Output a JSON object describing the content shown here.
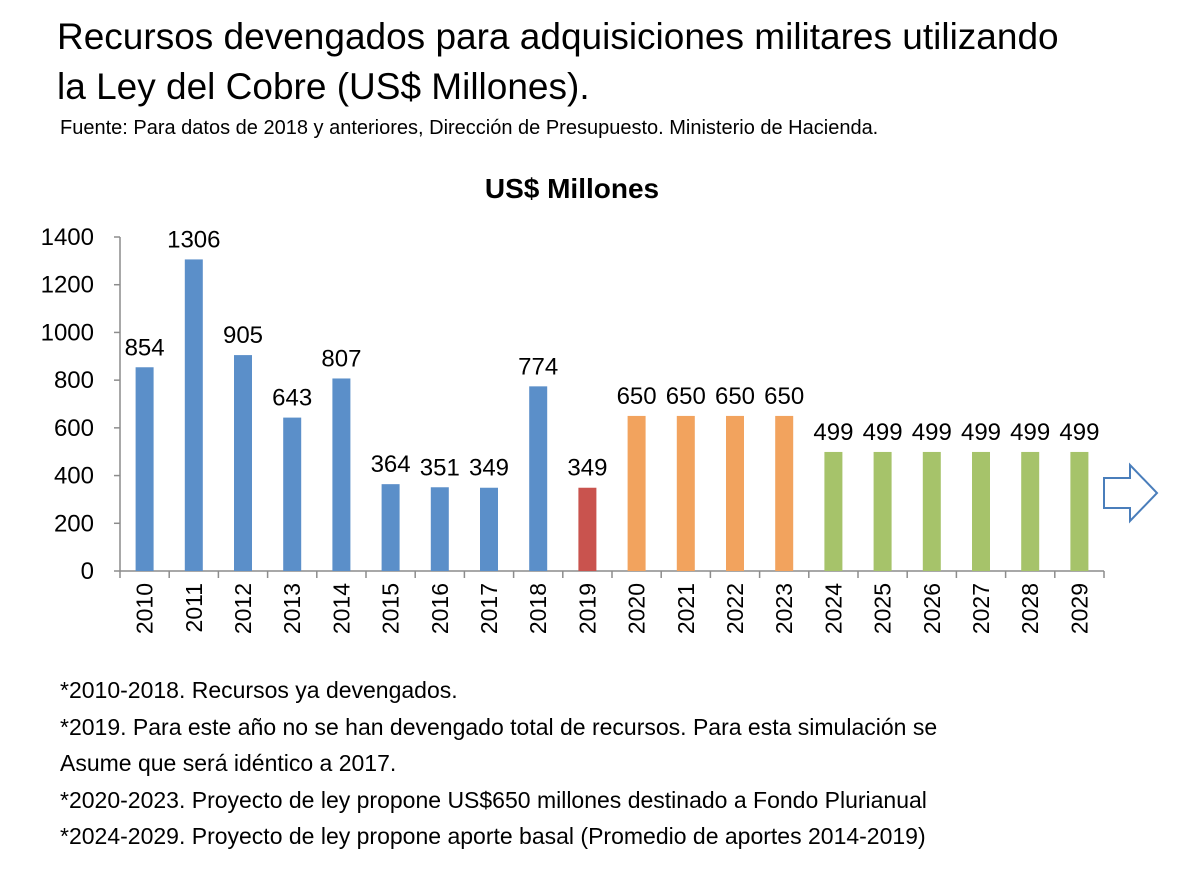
{
  "header": {
    "title_line1": "Recursos devengados para adquisiciones militares utilizando",
    "title_line2": "la Ley del Cobre (US$ Millones).",
    "source": "Fuente: Para datos de 2018 y anteriores, Dirección de Presupuesto. Ministerio de Hacienda."
  },
  "chart_data": {
    "type": "bar",
    "title": "US$ Millones",
    "xlabel": "",
    "ylabel": "",
    "ylim": [
      0,
      1400
    ],
    "yticks": [
      0,
      200,
      400,
      600,
      800,
      1000,
      1200,
      1400
    ],
    "grid": false,
    "legend": "none",
    "categories": [
      "2010",
      "2011",
      "2012",
      "2013",
      "2014",
      "2015",
      "2016",
      "2017",
      "2018",
      "2019",
      "2020",
      "2021",
      "2022",
      "2023",
      "2024",
      "2025",
      "2026",
      "2027",
      "2028",
      "2029"
    ],
    "values": [
      854,
      1306,
      905,
      643,
      807,
      364,
      351,
      349,
      774,
      349,
      650,
      650,
      650,
      650,
      499,
      499,
      499,
      499,
      499,
      499
    ],
    "colors": [
      "#5b8fc9",
      "#5b8fc9",
      "#5b8fc9",
      "#5b8fc9",
      "#5b8fc9",
      "#5b8fc9",
      "#5b8fc9",
      "#5b8fc9",
      "#5b8fc9",
      "#c9534e",
      "#f2a35e",
      "#f2a35e",
      "#f2a35e",
      "#f2a35e",
      "#a6c36a",
      "#a6c36a",
      "#a6c36a",
      "#a6c36a",
      "#a6c36a",
      "#a6c36a"
    ],
    "annotation_icon": "right-arrow-icon",
    "annotation_icon_color": "#4a7ebb"
  },
  "notes": [
    "*2010-2018. Recursos ya devengados.",
    "*2019. Para este año no se han devengado total de recursos. Para esta simulación se",
    "Asume que será idéntico a 2017.",
    "*2020-2023. Proyecto de ley propone US$650 millones destinado a Fondo Plurianual",
    "*2024-2029. Proyecto de ley propone aporte basal (Promedio de aportes 2014-2019)"
  ]
}
